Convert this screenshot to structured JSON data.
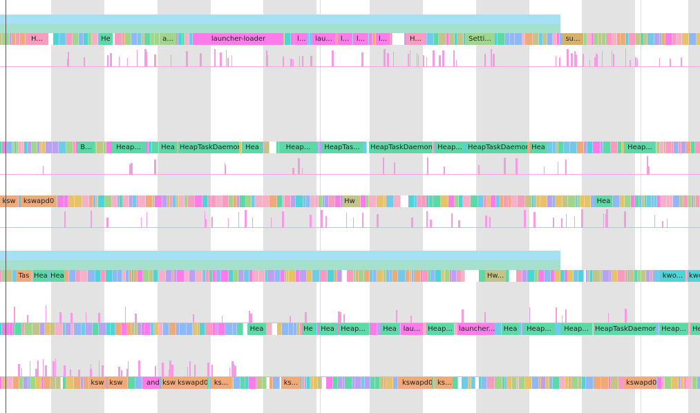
{
  "colors": {
    "heap": "#5fd8a8",
    "launcher": "#f97ce9",
    "kswapd": "#f0a978",
    "hw": "#c4c48a",
    "kworker": "#4fd3d6",
    "settings": "#9fd68c",
    "cpu_top": "#a7dff5",
    "cpu_bottom": "#a4e0cc",
    "palette": [
      "#5fd8a8",
      "#f97ce9",
      "#f0a978",
      "#c4c48a",
      "#4fd3d6",
      "#9fd68c",
      "#8fb8f5",
      "#f79bbf",
      "#b9a3f0",
      "#e6c36a",
      "#72c9e8",
      "#f6b0c8"
    ]
  },
  "tracks": [
    {
      "id": "t1",
      "labels": [
        {
          "text": "H...",
          "color": "#f79bbf"
        },
        {
          "text": "He",
          "color": "#5fd8a8"
        },
        {
          "text": "a...",
          "color": "#9fd68c"
        },
        {
          "text": "launcher-loader",
          "color": "#f97ce9"
        },
        {
          "text": "l...",
          "color": "#f97ce9"
        },
        {
          "text": "lau...",
          "color": "#f97ce9"
        },
        {
          "text": "l...",
          "color": "#f97ce9"
        },
        {
          "text": "l...",
          "color": "#f97ce9"
        },
        {
          "text": "l...",
          "color": "#f97ce9"
        },
        {
          "text": "H...",
          "color": "#f79bbf"
        },
        {
          "text": "Setti...",
          "color": "#9fd68c"
        },
        {
          "text": "su...",
          "color": "#d9b06a"
        }
      ]
    },
    {
      "id": "t2",
      "labels": [
        {
          "text": "B...",
          "color": "#5fd8a8"
        },
        {
          "text": "Heap...",
          "color": "#5fd8a8"
        },
        {
          "text": "Hea",
          "color": "#5fd8a8"
        },
        {
          "text": "HeapTaskDaemon",
          "color": "#5fd8a8"
        },
        {
          "text": "Hea",
          "color": "#5fd8a8"
        },
        {
          "text": "Heap...",
          "color": "#5fd8a8"
        },
        {
          "text": "HeapTas...",
          "color": "#5fd8a8"
        },
        {
          "text": "HeapTaskDaemon",
          "color": "#5fd8a8"
        },
        {
          "text": "Heap...",
          "color": "#5fd8a8"
        },
        {
          "text": "HeapTaskDaemon",
          "color": "#5fd8a8"
        },
        {
          "text": "Hea",
          "color": "#5fd8a8"
        },
        {
          "text": "Heap...",
          "color": "#5fd8a8"
        }
      ]
    },
    {
      "id": "t3",
      "labels": [
        {
          "text": "ksw",
          "color": "#f0a978"
        },
        {
          "text": "kswapd0",
          "color": "#f0a978"
        },
        {
          "text": "Hw",
          "color": "#c4c48a"
        },
        {
          "text": "Hea",
          "color": "#5fd8a8"
        }
      ]
    },
    {
      "id": "t4",
      "labels": [
        {
          "text": "Tas",
          "color": "#f0a978"
        },
        {
          "text": "Hea",
          "color": "#5fd8a8"
        },
        {
          "text": "Hea",
          "color": "#5fd8a8"
        },
        {
          "text": "Hw...",
          "color": "#c4c48a"
        },
        {
          "text": "kwo...",
          "color": "#4fd3d6"
        },
        {
          "text": "kwo",
          "color": "#4fd3d6"
        }
      ]
    },
    {
      "id": "t5",
      "labels": [
        {
          "text": "Hea",
          "color": "#5fd8a8"
        },
        {
          "text": "He",
          "color": "#5fd8a8"
        },
        {
          "text": "Hea",
          "color": "#5fd8a8"
        },
        {
          "text": "Heap...",
          "color": "#5fd8a8"
        },
        {
          "text": "Hea",
          "color": "#5fd8a8"
        },
        {
          "text": "lau...",
          "color": "#f97ce9"
        },
        {
          "text": "Heap...",
          "color": "#5fd8a8"
        },
        {
          "text": "launcher...",
          "color": "#f97ce9"
        },
        {
          "text": "Hea",
          "color": "#5fd8a8"
        },
        {
          "text": "Heap...",
          "color": "#5fd8a8"
        },
        {
          "text": "Heap...",
          "color": "#5fd8a8"
        },
        {
          "text": "HeapTaskDaemon",
          "color": "#5fd8a8"
        },
        {
          "text": "Heap...",
          "color": "#5fd8a8"
        },
        {
          "text": "He",
          "color": "#5fd8a8"
        }
      ]
    },
    {
      "id": "t6",
      "labels": [
        {
          "text": "ksw",
          "color": "#f0a978"
        },
        {
          "text": "ksw",
          "color": "#f0a978"
        },
        {
          "text": "and",
          "color": "#f97ce9"
        },
        {
          "text": "ksw",
          "color": "#f0a978"
        },
        {
          "text": "kswapd0",
          "color": "#f0a978"
        },
        {
          "text": "ks...",
          "color": "#f0a978"
        },
        {
          "text": "ks...",
          "color": "#f0a978"
        },
        {
          "text": "kswapd0",
          "color": "#f0a978"
        },
        {
          "text": "ks...",
          "color": "#f0a978"
        },
        {
          "text": "kswapd0",
          "color": "#f0a978"
        }
      ]
    }
  ]
}
